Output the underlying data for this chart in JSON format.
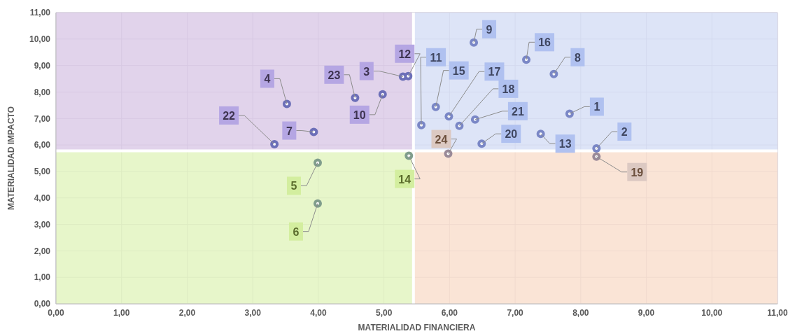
{
  "chart_data": {
    "type": "scatter",
    "xlabel": "MATERIALIDAD FINANCIERA",
    "ylabel": "MATERIALIDAD IMPACTO",
    "xlim": [
      0,
      11
    ],
    "ylim": [
      0,
      11
    ],
    "xticks": [
      {
        "value": 0,
        "label": "0,00"
      },
      {
        "value": 1,
        "label": "1,00"
      },
      {
        "value": 2,
        "label": "2,00"
      },
      {
        "value": 3,
        "label": "3,00"
      },
      {
        "value": 4,
        "label": "4,00"
      },
      {
        "value": 5,
        "label": "5,00"
      },
      {
        "value": 6,
        "label": "6,00"
      },
      {
        "value": 7,
        "label": "7,00"
      },
      {
        "value": 8,
        "label": "8,00"
      },
      {
        "value": 9,
        "label": "9,00"
      },
      {
        "value": 10,
        "label": "10,00"
      },
      {
        "value": 11,
        "label": "11,00"
      }
    ],
    "yticks": [
      {
        "value": 0,
        "label": "0,00"
      },
      {
        "value": 1,
        "label": "1,00"
      },
      {
        "value": 2,
        "label": "2,00"
      },
      {
        "value": 3,
        "label": "3,00"
      },
      {
        "value": 4,
        "label": "4,00"
      },
      {
        "value": 5,
        "label": "5,00"
      },
      {
        "value": 6,
        "label": "6,00"
      },
      {
        "value": 7,
        "label": "7,00"
      },
      {
        "value": 8,
        "label": "8,00"
      },
      {
        "value": 9,
        "label": "9,00"
      },
      {
        "value": 10,
        "label": "10,00"
      },
      {
        "value": 11,
        "label": "11,00"
      }
    ],
    "grid": true,
    "legend": false,
    "marker": "circle",
    "series": [
      {
        "color": "#6c6fb8",
        "x": [
          3.52,
          3.33,
          3.93,
          4.56,
          4.98,
          5.29,
          5.37
        ],
        "values": [
          7.55,
          6.03,
          6.49,
          7.78,
          7.91,
          8.58,
          8.6
        ]
      },
      {
        "color": "#7a87c6",
        "x": [
          6.37,
          7.17,
          7.59,
          5.57,
          5.79,
          5.99,
          6.15,
          6.39,
          6.49,
          7.39,
          7.83,
          8.24
        ],
        "values": [
          9.87,
          9.22,
          8.68,
          6.75,
          7.44,
          7.08,
          6.72,
          6.96,
          6.05,
          6.42,
          7.18,
          5.87
        ]
      },
      {
        "color": "#809d8c",
        "x": [
          3.99,
          3.99,
          5.38
        ],
        "values": [
          5.33,
          3.79,
          5.59
        ]
      },
      {
        "color": "#9a8a98",
        "x": [
          8.24,
          5.98
        ],
        "values": [
          5.56,
          5.67
        ]
      }
    ],
    "ref_lines": [
      {
        "axis": "x",
        "value": 5.45,
        "color": "#ffffff"
      },
      {
        "axis": "y",
        "value": 5.78,
        "color": "#ffffff"
      }
    ],
    "annotations": [
      {
        "text": "4",
        "x": 3.52,
        "y": 7.55
      },
      {
        "text": "22",
        "x": 3.33,
        "y": 6.03
      },
      {
        "text": "7",
        "x": 3.93,
        "y": 6.49
      },
      {
        "text": "23",
        "x": 4.56,
        "y": 7.78
      },
      {
        "text": "10",
        "x": 4.98,
        "y": 7.91
      },
      {
        "text": "3",
        "x": 5.29,
        "y": 8.58
      },
      {
        "text": "12",
        "x": 5.37,
        "y": 8.6
      },
      {
        "text": "9",
        "x": 6.37,
        "y": 9.87
      },
      {
        "text": "16",
        "x": 7.17,
        "y": 9.22
      },
      {
        "text": "8",
        "x": 7.59,
        "y": 8.68
      },
      {
        "text": "11",
        "x": 5.57,
        "y": 6.75
      },
      {
        "text": "15",
        "x": 5.79,
        "y": 7.44
      },
      {
        "text": "17",
        "x": 5.99,
        "y": 7.08
      },
      {
        "text": "18",
        "x": 6.15,
        "y": 6.72
      },
      {
        "text": "21",
        "x": 6.39,
        "y": 6.96
      },
      {
        "text": "20",
        "x": 6.49,
        "y": 6.05
      },
      {
        "text": "13",
        "x": 7.39,
        "y": 6.42
      },
      {
        "text": "1",
        "x": 7.83,
        "y": 7.18
      },
      {
        "text": "2",
        "x": 8.24,
        "y": 5.87
      },
      {
        "text": "5",
        "x": 3.99,
        "y": 5.33
      },
      {
        "text": "6",
        "x": 3.99,
        "y": 3.79
      },
      {
        "text": "14",
        "x": 5.38,
        "y": 5.59
      },
      {
        "text": "19",
        "x": 8.24,
        "y": 5.56
      },
      {
        "text": "24",
        "x": 5.98,
        "y": 5.67
      }
    ]
  }
}
